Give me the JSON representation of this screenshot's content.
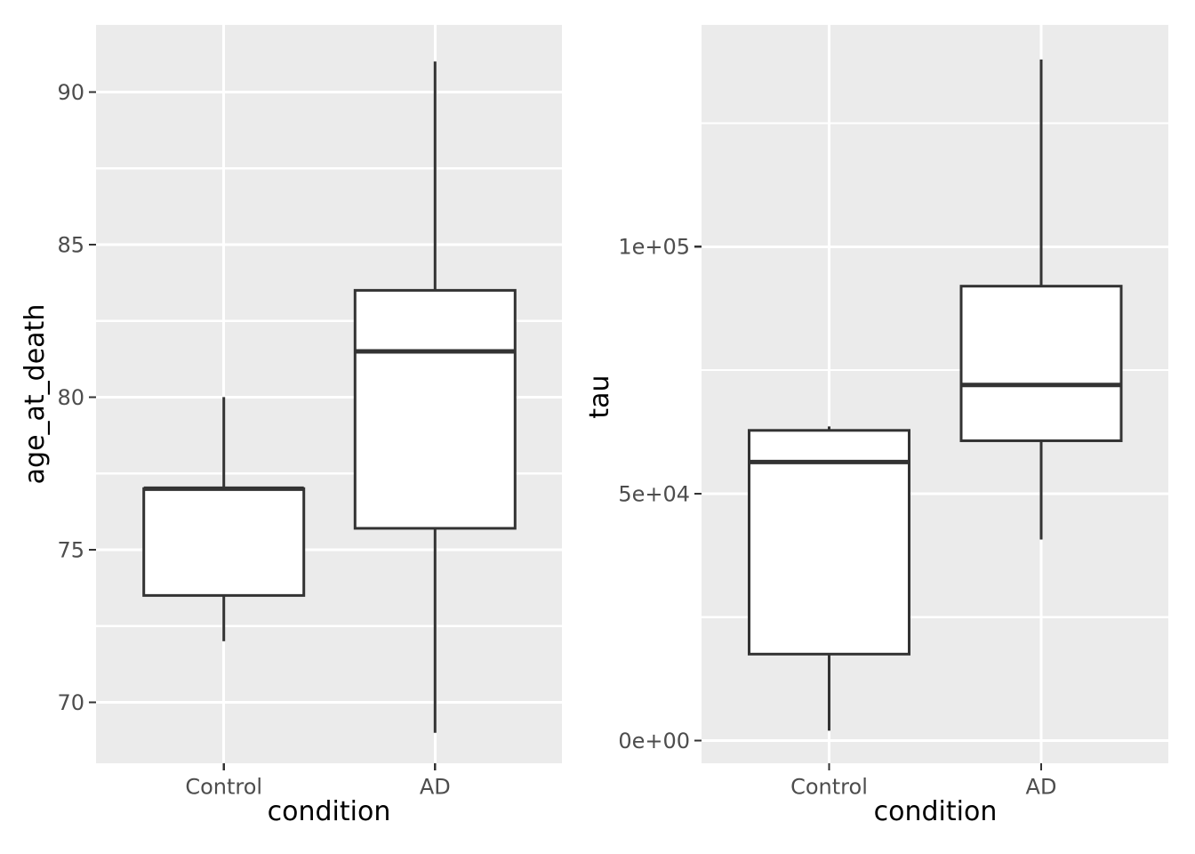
{
  "figure": {
    "kind": "ggplot-style side-by-side boxplots",
    "background": "#FFFFFF",
    "panel_bg": "#EBEBEB",
    "grid_color": "#FFFFFF",
    "box_stroke": "#333333",
    "box_fill": "#FFFFFF",
    "tick_color": "#333333",
    "tick_label_color": "#4D4D4D",
    "axis_title_color": "#000000"
  },
  "chart_data": [
    {
      "type": "boxplot",
      "panel": "left",
      "title": "",
      "xlabel": "condition",
      "ylabel": "age_at_death",
      "categories": [
        "Control",
        "AD"
      ],
      "ylim": [
        68,
        92.2
      ],
      "grid": true,
      "legend": "none",
      "y_major_ticks": [
        {
          "value": 70,
          "label": "70"
        },
        {
          "value": 75,
          "label": "75"
        },
        {
          "value": 80,
          "label": "80"
        },
        {
          "value": 85,
          "label": "85"
        },
        {
          "value": 90,
          "label": "90"
        }
      ],
      "y_minor_ticks": [
        72.5,
        77.5,
        82.5,
        87.5
      ],
      "series": [
        {
          "category": "Control",
          "min": 72,
          "q1": 73.5,
          "median": 77,
          "q3": 77,
          "max": 80
        },
        {
          "category": "AD",
          "min": 69,
          "q1": 75.7,
          "median": 81.5,
          "q3": 83.5,
          "max": 91
        }
      ]
    },
    {
      "type": "boxplot",
      "panel": "right",
      "title": "",
      "xlabel": "condition",
      "ylabel": "tau",
      "categories": [
        "Control",
        "AD"
      ],
      "ylim": [
        -4600,
        144900
      ],
      "grid": true,
      "legend": "none",
      "y_major_ticks": [
        {
          "value": 0,
          "label": "0e+00"
        },
        {
          "value": 50000,
          "label": "5e+04"
        },
        {
          "value": 100000,
          "label": "1e+05"
        }
      ],
      "y_minor_ticks": [
        25000,
        75000,
        125000
      ],
      "series": [
        {
          "category": "Control",
          "min": 2000,
          "q1": 17500,
          "median": 56400,
          "q3": 62800,
          "max": 63600
        },
        {
          "category": "AD",
          "min": 40700,
          "q1": 60700,
          "median": 72000,
          "q3": 92000,
          "max": 137900
        }
      ]
    }
  ]
}
